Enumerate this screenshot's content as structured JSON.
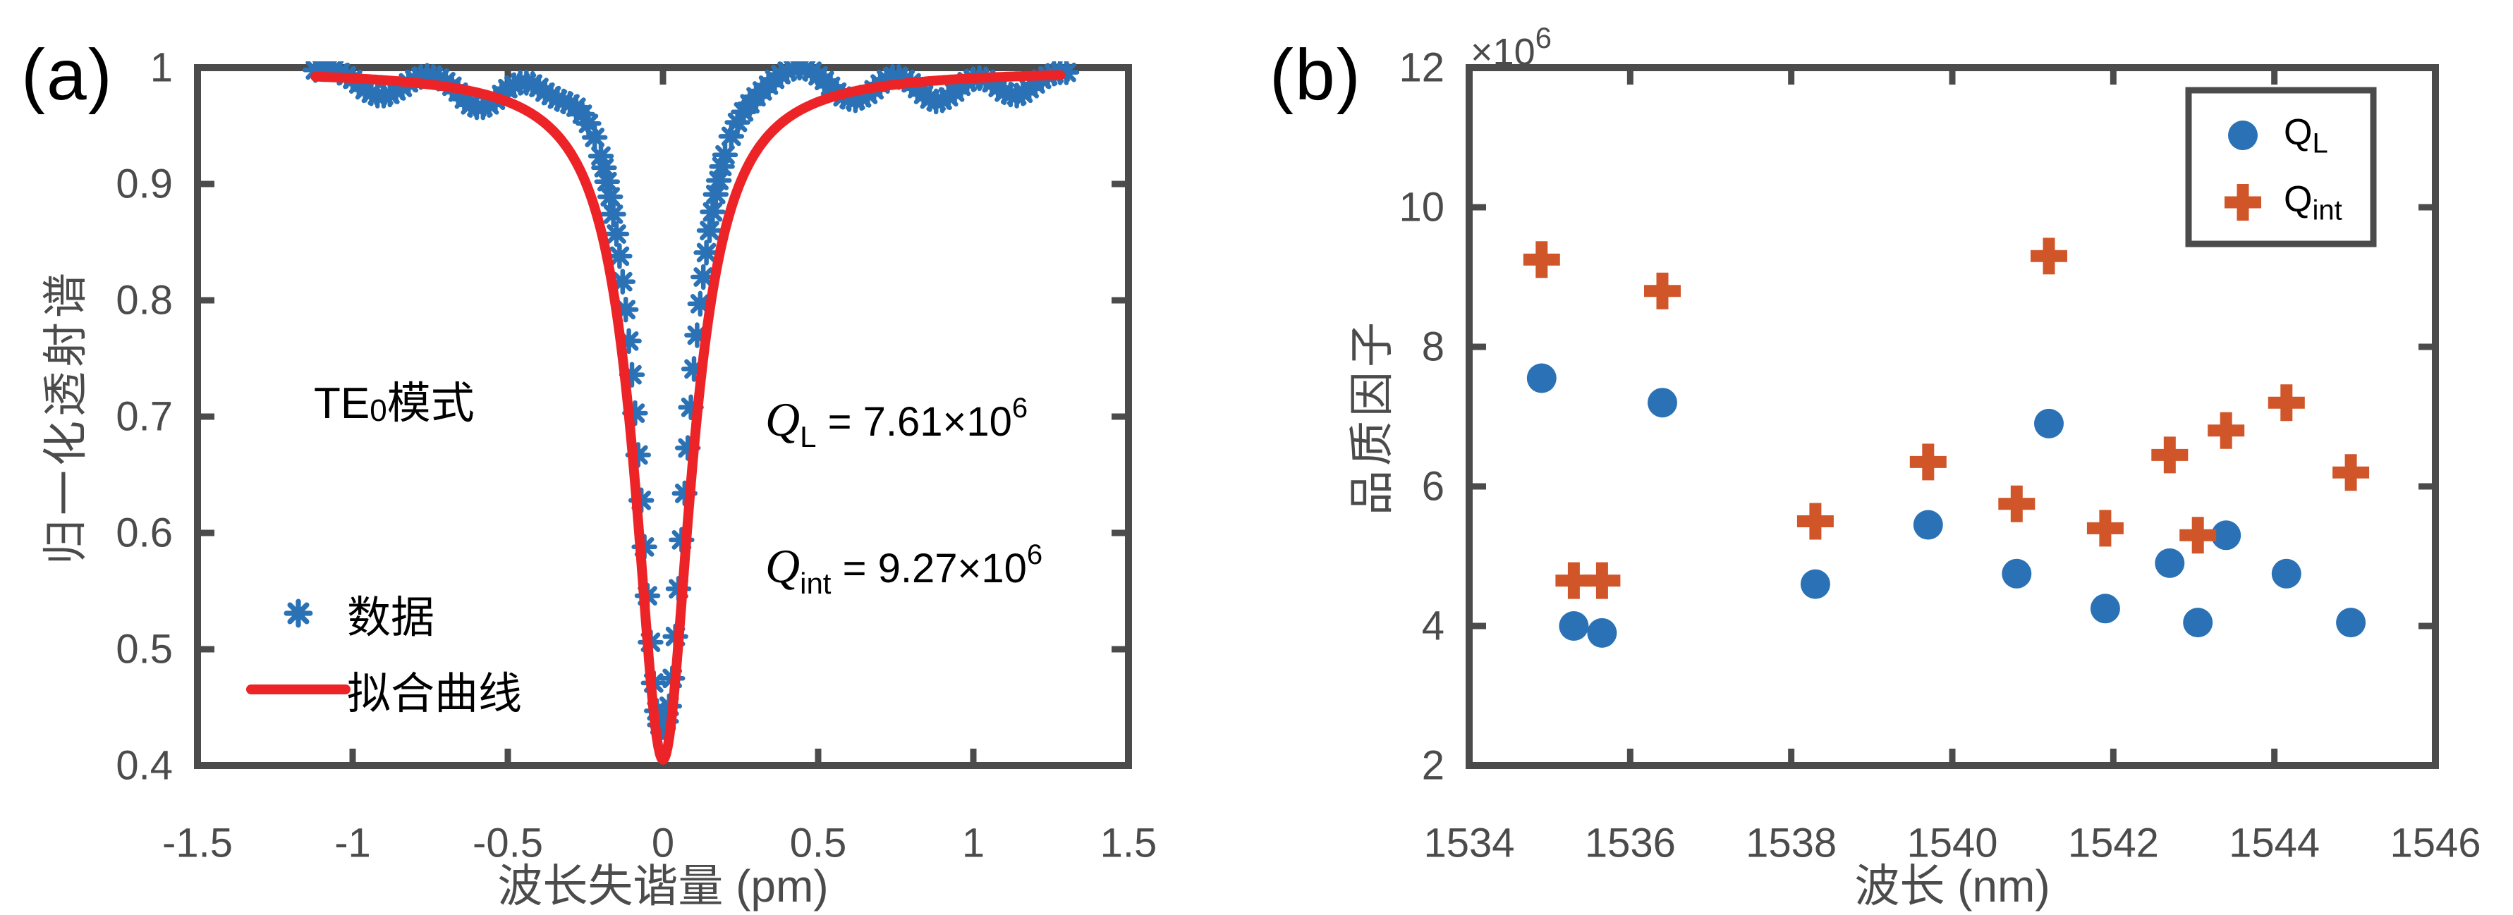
{
  "colors": {
    "data_blue": "#2A72B5",
    "fit_red": "#EC2427",
    "qint_orange": "#D0562A",
    "axis_gray": "#4B4B4B",
    "text_black": "#000000",
    "background": "#FFFFFF"
  },
  "panel_a": {
    "label": "(a)",
    "x_axis": {
      "label": "波长失谐量 (pm)"
    },
    "y_axis": {
      "label": "归一化透射谱"
    },
    "annotations": {
      "mode": {
        "prefix": "TE",
        "sub": "0",
        "suffix": "模式"
      },
      "q_loaded": {
        "symbol": "Q",
        "sub": "L",
        "eq": " = 7.61×10",
        "exp": "6"
      },
      "q_intrinsic": {
        "symbol": "Q",
        "sub": "int",
        "eq": " = 9.27×10",
        "exp": "6"
      }
    },
    "legend": [
      {
        "label": "数据",
        "marker": "asterisk"
      },
      {
        "label": "拟合曲线",
        "marker": "line"
      }
    ]
  },
  "panel_b": {
    "label": "(b)",
    "x_axis": {
      "label": "波长 (nm)"
    },
    "y_axis": {
      "label": "品质因子",
      "exponent": {
        "base": "×10",
        "exp": "6"
      }
    },
    "legend": [
      {
        "symbol": "Q",
        "sub": "L",
        "marker": "circle"
      },
      {
        "symbol": "Q",
        "sub": "int",
        "marker": "plus"
      }
    ]
  },
  "chart_data": [
    {
      "type": "scatter",
      "title": "",
      "xlabel": "波长失谐量 (pm)",
      "ylabel": "归一化透射谱",
      "xlim": [
        -1.5,
        1.5
      ],
      "ylim": [
        0.4,
        1.0
      ],
      "xticks": [
        -1.5,
        -1,
        -0.5,
        0,
        0.5,
        1,
        1.5
      ],
      "xtick_labels": [
        "-1.5",
        "-1",
        "-0.5",
        "0",
        "0.5",
        "1",
        "1.5"
      ],
      "yticks": [
        1,
        0.9,
        0.8,
        0.7,
        0.6,
        0.5,
        0.4
      ],
      "ytick_labels": [
        "1",
        "0.9",
        "0.8",
        "0.7",
        "0.6",
        "0.5",
        "0.4"
      ],
      "grid": false,
      "annotation_mode": "TE0模式",
      "q_loaded": "7.61e6",
      "q_intrinsic": "9.27e6",
      "series": [
        {
          "name": "数据",
          "marker": "asterisk",
          "color_key": "data_blue",
          "points": [
            [
              -1.12,
              0.998
            ],
            [
              -1.1,
              1.0
            ],
            [
              -1.08,
              1.0
            ],
            [
              -1.06,
              0.999
            ],
            [
              -1.04,
              0.996
            ],
            [
              -1.02,
              0.993
            ],
            [
              -1.0,
              0.99
            ],
            [
              -0.98,
              0.986
            ],
            [
              -0.96,
              0.981
            ],
            [
              -0.94,
              0.978
            ],
            [
              -0.92,
              0.976
            ],
            [
              -0.9,
              0.976
            ],
            [
              -0.88,
              0.977
            ],
            [
              -0.86,
              0.98
            ],
            [
              -0.84,
              0.983
            ],
            [
              -0.82,
              0.987
            ],
            [
              -0.8,
              0.99
            ],
            [
              -0.78,
              0.992
            ],
            [
              -0.76,
              0.993
            ],
            [
              -0.74,
              0.992
            ],
            [
              -0.72,
              0.991
            ],
            [
              -0.7,
              0.988
            ],
            [
              -0.68,
              0.984
            ],
            [
              -0.66,
              0.979
            ],
            [
              -0.64,
              0.973
            ],
            [
              -0.62,
              0.968
            ],
            [
              -0.6,
              0.966
            ],
            [
              -0.58,
              0.966
            ],
            [
              -0.56,
              0.968
            ],
            [
              -0.54,
              0.972
            ],
            [
              -0.52,
              0.977
            ],
            [
              -0.5,
              0.982
            ],
            [
              -0.48,
              0.985
            ],
            [
              -0.46,
              0.987
            ],
            [
              -0.44,
              0.987
            ],
            [
              -0.42,
              0.986
            ],
            [
              -0.4,
              0.983
            ],
            [
              -0.38,
              0.979
            ],
            [
              -0.36,
              0.976
            ],
            [
              -0.34,
              0.973
            ],
            [
              -0.32,
              0.971
            ],
            [
              -0.3,
              0.969
            ],
            [
              -0.28,
              0.966
            ],
            [
              -0.26,
              0.96
            ],
            [
              -0.24,
              0.952
            ],
            [
              -0.22,
              0.94
            ],
            [
              -0.2,
              0.924
            ],
            [
              -0.19,
              0.914
            ],
            [
              -0.18,
              0.902
            ],
            [
              -0.17,
              0.889
            ],
            [
              -0.16,
              0.874
            ],
            [
              -0.15,
              0.857
            ],
            [
              -0.14,
              0.838
            ],
            [
              -0.13,
              0.816
            ],
            [
              -0.12,
              0.792
            ],
            [
              -0.11,
              0.765
            ],
            [
              -0.1,
              0.736
            ],
            [
              -0.09,
              0.703
            ],
            [
              -0.08,
              0.667
            ],
            [
              -0.07,
              0.628
            ],
            [
              -0.06,
              0.588
            ],
            [
              -0.05,
              0.546
            ],
            [
              -0.04,
              0.506
            ],
            [
              -0.03,
              0.471
            ],
            [
              -0.02,
              0.447
            ],
            [
              -0.01,
              0.435
            ],
            [
              0.0,
              0.433
            ],
            [
              0.01,
              0.438
            ],
            [
              0.02,
              0.451
            ],
            [
              0.03,
              0.475
            ],
            [
              0.04,
              0.511
            ],
            [
              0.05,
              0.552
            ],
            [
              0.06,
              0.594
            ],
            [
              0.07,
              0.634
            ],
            [
              0.08,
              0.673
            ],
            [
              0.09,
              0.708
            ],
            [
              0.1,
              0.741
            ],
            [
              0.11,
              0.77
            ],
            [
              0.12,
              0.797
            ],
            [
              0.13,
              0.82
            ],
            [
              0.14,
              0.841
            ],
            [
              0.15,
              0.86
            ],
            [
              0.16,
              0.876
            ],
            [
              0.17,
              0.891
            ],
            [
              0.18,
              0.903
            ],
            [
              0.19,
              0.915
            ],
            [
              0.2,
              0.925
            ],
            [
              0.22,
              0.941
            ],
            [
              0.24,
              0.953
            ],
            [
              0.26,
              0.962
            ],
            [
              0.28,
              0.969
            ],
            [
              0.3,
              0.975
            ],
            [
              0.32,
              0.98
            ],
            [
              0.34,
              0.985
            ],
            [
              0.36,
              0.99
            ],
            [
              0.38,
              0.994
            ],
            [
              0.4,
              0.997
            ],
            [
              0.42,
              0.999
            ],
            [
              0.44,
              1.0
            ],
            [
              0.46,
              0.999
            ],
            [
              0.48,
              0.997
            ],
            [
              0.5,
              0.993
            ],
            [
              0.52,
              0.989
            ],
            [
              0.54,
              0.984
            ],
            [
              0.56,
              0.979
            ],
            [
              0.58,
              0.975
            ],
            [
              0.6,
              0.973
            ],
            [
              0.62,
              0.972
            ],
            [
              0.64,
              0.974
            ],
            [
              0.66,
              0.977
            ],
            [
              0.68,
              0.981
            ],
            [
              0.7,
              0.986
            ],
            [
              0.72,
              0.99
            ],
            [
              0.74,
              0.992
            ],
            [
              0.76,
              0.992
            ],
            [
              0.78,
              0.99
            ],
            [
              0.8,
              0.987
            ],
            [
              0.82,
              0.982
            ],
            [
              0.84,
              0.977
            ],
            [
              0.86,
              0.973
            ],
            [
              0.88,
              0.971
            ],
            [
              0.9,
              0.972
            ],
            [
              0.92,
              0.975
            ],
            [
              0.94,
              0.979
            ],
            [
              0.96,
              0.984
            ],
            [
              0.98,
              0.988
            ],
            [
              1.0,
              0.99
            ],
            [
              1.02,
              0.991
            ],
            [
              1.04,
              0.99
            ],
            [
              1.06,
              0.987
            ],
            [
              1.08,
              0.983
            ],
            [
              1.1,
              0.979
            ],
            [
              1.12,
              0.977
            ],
            [
              1.14,
              0.976
            ],
            [
              1.16,
              0.978
            ],
            [
              1.18,
              0.982
            ],
            [
              1.2,
              0.986
            ],
            [
              1.22,
              0.99
            ],
            [
              1.24,
              0.993
            ],
            [
              1.26,
              0.995
            ],
            [
              1.28,
              0.996
            ],
            [
              1.3,
              0.996
            ]
          ]
        },
        {
          "name": "拟合曲线",
          "type": "line",
          "color_key": "fit_red",
          "fit": {
            "model": "lorentzian",
            "baseline": 0.998,
            "depth": 0.593,
            "center": 0,
            "hwhm_pm": 0.11,
            "x_start": -1.12,
            "x_end": 1.28
          }
        }
      ]
    },
    {
      "type": "scatter",
      "title": "",
      "xlabel": "波长 (nm)",
      "ylabel": "品质因子",
      "y_unit_scale": "×10^6",
      "xlim": [
        1534,
        1546
      ],
      "ylim": [
        2,
        12
      ],
      "xticks": [
        1534,
        1536,
        1538,
        1540,
        1542,
        1544,
        1546
      ],
      "xtick_labels": [
        "1534",
        "1536",
        "1538",
        "1540",
        "1542",
        "1544",
        "1546"
      ],
      "yticks": [
        12,
        10,
        8,
        6,
        4,
        2
      ],
      "ytick_labels": [
        "12",
        "10",
        "8",
        "6",
        "4",
        "2"
      ],
      "grid": false,
      "legend_position": "top-right",
      "categories_x_nm": [
        1534.9,
        1535.3,
        1535.65,
        1536.4,
        1538.3,
        1539.7,
        1540.8,
        1541.2,
        1541.9,
        1542.7,
        1543.05,
        1543.4,
        1544.15,
        1544.95
      ],
      "series": [
        {
          "name": "Q_L",
          "marker": "circle",
          "color_key": "data_blue",
          "values": [
            7.55,
            4.0,
            3.9,
            7.2,
            4.6,
            5.45,
            4.75,
            6.9,
            4.25,
            4.9,
            4.05,
            5.3,
            4.75,
            4.05
          ]
        },
        {
          "name": "Q_int",
          "marker": "plus",
          "color_key": "qint_orange",
          "values": [
            9.25,
            4.65,
            4.65,
            8.8,
            5.5,
            6.35,
            5.75,
            9.3,
            5.4,
            6.45,
            5.3,
            6.8,
            7.2,
            6.2
          ]
        }
      ]
    }
  ]
}
